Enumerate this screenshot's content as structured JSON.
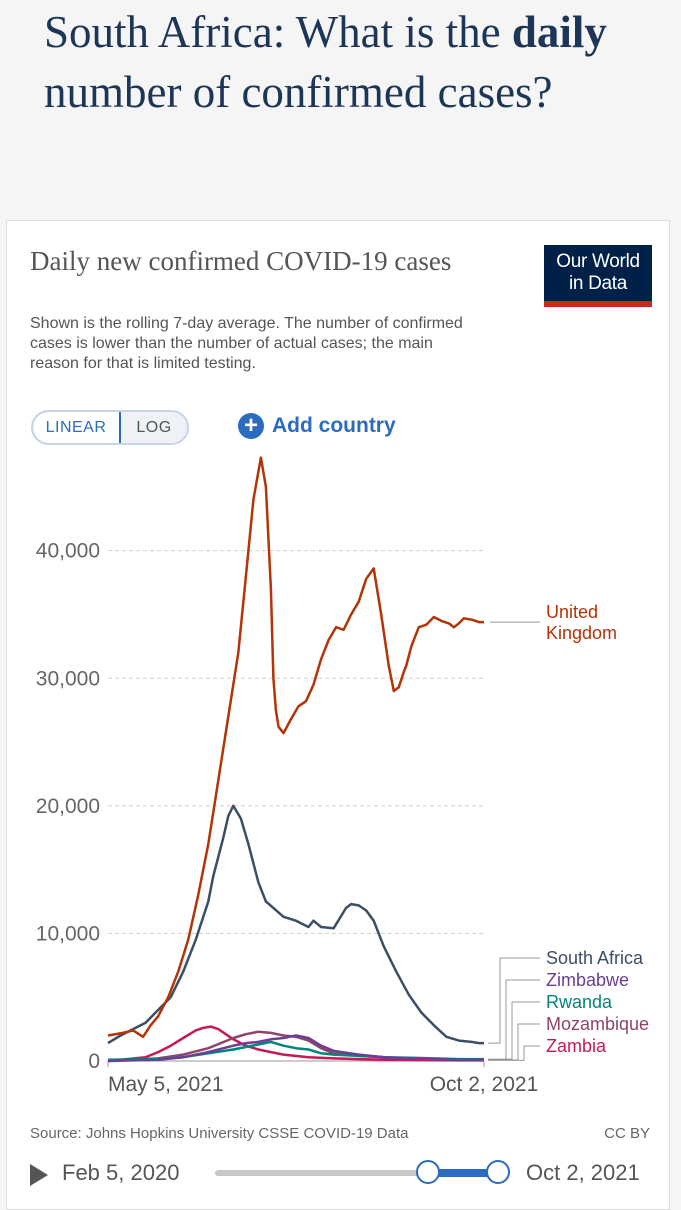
{
  "header": {
    "title_pre": "South Africa: What is the ",
    "title_bold": "daily",
    "title_post": " number of confirmed cases?"
  },
  "card": {
    "logo_line1": "Our World",
    "logo_line2": "in Data",
    "scale_linear": "LINEAR",
    "scale_log": "LOG",
    "add_country": "Add country",
    "source": "Source: Johns Hopkins University CSSE COVID-19 Data",
    "license": "CC BY",
    "timeline_start": "Feb 5, 2020",
    "timeline_end": "Oct 2, 2021"
  },
  "colors": {
    "united_kingdom": "#b13507",
    "south_africa": "#3c4e66",
    "zimbabwe": "#6d3e91",
    "rwanda": "#00847e",
    "mozambique": "#8c4569",
    "zambia": "#c7195a",
    "accent": "#2b6bc0"
  },
  "chart_data": {
    "type": "line",
    "title": "Daily new confirmed COVID-19 cases",
    "subtitle": "Shown is the rolling 7-day average. The number of confirmed cases is lower than the number of actual cases; the main reason for that is limited testing.",
    "x_day_range": [
      0,
      150
    ],
    "x_tick_labels": [
      {
        "day": 0,
        "label": "May 5, 2021"
      },
      {
        "day": 150,
        "label": "Oct 2, 2021"
      }
    ],
    "ylim": [
      0,
      47500
    ],
    "y_ticks": [
      {
        "value": 0,
        "label": "0"
      },
      {
        "value": 10000,
        "label": "10,000"
      },
      {
        "value": 20000,
        "label": "20,000"
      },
      {
        "value": 30000,
        "label": "30,000"
      },
      {
        "value": 40000,
        "label": "40,000"
      }
    ],
    "x_note": "x values are days since May 5, 2021",
    "series": [
      {
        "name": "United Kingdom",
        "key": "united_kingdom",
        "label_lines": [
          "United",
          "Kingdom"
        ],
        "x": [
          0,
          6,
          10,
          14,
          17,
          20,
          24,
          28,
          32,
          36,
          40,
          44,
          48,
          52,
          55,
          58,
          61,
          63,
          65,
          66,
          67,
          68,
          70,
          73,
          76,
          79,
          82,
          85,
          88,
          91,
          94,
          97,
          100,
          103,
          106,
          109,
          112,
          114,
          116,
          118,
          119,
          121,
          124,
          127,
          130,
          133,
          136,
          138,
          140,
          142,
          145,
          148,
          150
        ],
        "y": [
          2000,
          2200,
          2400,
          1900,
          2800,
          3500,
          5000,
          7000,
          9500,
          13000,
          17000,
          22000,
          27000,
          32000,
          38000,
          44000,
          47300,
          45000,
          37000,
          30000,
          27500,
          26200,
          25700,
          26800,
          27800,
          28200,
          29500,
          31500,
          33000,
          34000,
          33800,
          35000,
          36000,
          37800,
          38600,
          35000,
          31000,
          29000,
          29300,
          30500,
          31000,
          32500,
          34000,
          34200,
          34800,
          34500,
          34300,
          34000,
          34300,
          34700,
          34600,
          34400,
          34400
        ],
        "label_y": 33700,
        "legend_pos": "right"
      },
      {
        "name": "South Africa",
        "key": "south_africa",
        "label_lines": [
          "South Africa"
        ],
        "x": [
          0,
          5,
          10,
          15,
          20,
          25,
          30,
          35,
          40,
          42,
          44,
          46,
          48,
          50,
          53,
          56,
          60,
          63,
          66,
          70,
          75,
          80,
          82,
          85,
          90,
          95,
          97,
          100,
          103,
          106,
          110,
          115,
          120,
          125,
          130,
          135,
          140,
          145,
          148,
          150
        ],
        "y": [
          1400,
          2000,
          2500,
          3000,
          4000,
          5000,
          7000,
          9500,
          12500,
          14500,
          16000,
          17500,
          19200,
          20000,
          19000,
          17000,
          14000,
          12500,
          12000,
          11300,
          11000,
          10500,
          11000,
          10500,
          10400,
          12000,
          12300,
          12200,
          11800,
          11000,
          9000,
          7000,
          5200,
          3800,
          2800,
          1900,
          1600,
          1500,
          1400,
          1400
        ],
        "label_y": 0,
        "legend_pos": "right"
      },
      {
        "name": "Zimbabwe",
        "key": "zimbabwe",
        "label_lines": [
          "Zimbabwe"
        ],
        "x": [
          0,
          20,
          30,
          40,
          50,
          55,
          60,
          65,
          70,
          75,
          80,
          85,
          90,
          100,
          110,
          120,
          130,
          140,
          150
        ],
        "y": [
          0,
          100,
          300,
          700,
          1200,
          1400,
          1500,
          1700,
          1800,
          2000,
          1800,
          1200,
          800,
          500,
          300,
          200,
          150,
          100,
          100
        ],
        "label_y": 0,
        "legend_pos": "right"
      },
      {
        "name": "Rwanda",
        "key": "rwanda",
        "label_lines": [
          "Rwanda"
        ],
        "x": [
          0,
          20,
          30,
          40,
          50,
          55,
          60,
          65,
          70,
          75,
          80,
          85,
          90,
          100,
          110,
          120,
          130,
          140,
          150
        ],
        "y": [
          100,
          150,
          300,
          600,
          900,
          1100,
          1300,
          1500,
          1200,
          1000,
          900,
          600,
          500,
          400,
          300,
          250,
          200,
          150,
          150
        ],
        "label_y": 0,
        "legend_pos": "right"
      },
      {
        "name": "Mozambique",
        "key": "mozambique",
        "label_lines": [
          "Mozambique"
        ],
        "x": [
          0,
          20,
          30,
          40,
          45,
          50,
          55,
          60,
          65,
          70,
          75,
          80,
          85,
          90,
          100,
          110,
          120,
          130,
          140,
          150
        ],
        "y": [
          0,
          200,
          500,
          1000,
          1400,
          1800,
          2100,
          2300,
          2200,
          2000,
          1900,
          1600,
          1000,
          600,
          400,
          300,
          200,
          150,
          100,
          80
        ],
        "label_y": 0,
        "legend_pos": "right"
      },
      {
        "name": "Zambia",
        "key": "zambia",
        "label_lines": [
          "Zambia"
        ],
        "x": [
          0,
          15,
          20,
          25,
          30,
          35,
          38,
          41,
          44,
          47,
          50,
          55,
          60,
          65,
          70,
          80,
          90,
          100,
          110,
          120,
          130,
          140,
          150
        ],
        "y": [
          0,
          300,
          700,
          1200,
          1800,
          2400,
          2600,
          2700,
          2500,
          2100,
          1700,
          1200,
          900,
          700,
          500,
          300,
          200,
          150,
          100,
          80,
          60,
          50,
          50
        ],
        "label_y": 0,
        "legend_pos": "right"
      }
    ],
    "legend": [
      "United Kingdom",
      "South Africa",
      "Zimbabwe",
      "Rwanda",
      "Mozambique",
      "Zambia"
    ]
  }
}
